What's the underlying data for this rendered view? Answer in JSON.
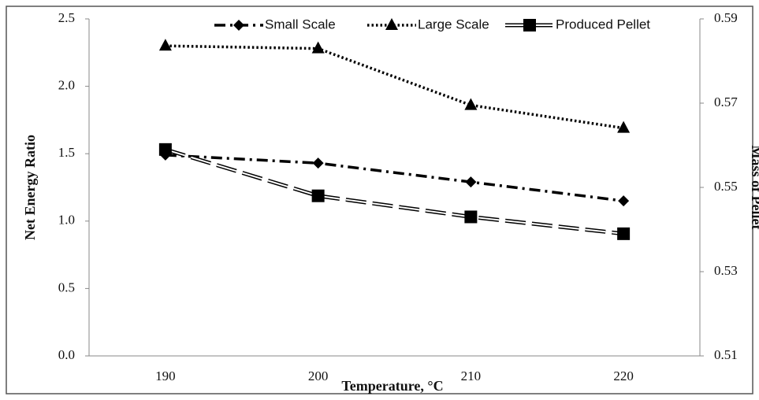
{
  "chart_data": {
    "type": "line",
    "xlabel": "Temperature, °C",
    "ylabel": "Net Energy Ratio",
    "y2label": "Mass of Pellet",
    "categories": [
      "190",
      "200",
      "210",
      "220"
    ],
    "series": [
      {
        "name": "Small Scale",
        "color": "#000000",
        "marker": "diamond",
        "line_style": "dashdot",
        "values": [
          1.49,
          1.43,
          1.29,
          1.15
        ]
      },
      {
        "name": "Large Scale",
        "color": "#000000",
        "marker": "triangle",
        "line_style": "dotted",
        "values": [
          2.3,
          2.28,
          1.86,
          1.69
        ]
      },
      {
        "name": "Produced Pellet",
        "color": "#000000",
        "marker": "square",
        "line_style": "double-dashed",
        "axis": "y2",
        "values": [
          0.559,
          0.548,
          0.543,
          0.539
        ]
      }
    ],
    "ylim": [
      0,
      2.5
    ],
    "yticks": [
      {
        "value": 0,
        "label": "0.0"
      },
      0.5,
      {
        "value": 1,
        "label": "1.0"
      },
      1.5,
      {
        "value": 2,
        "label": "2.0"
      },
      2.5
    ],
    "y2lim": [
      0.51,
      0.59
    ],
    "y2ticks": [
      0.51,
      0.53,
      0.55,
      0.57,
      0.59
    ],
    "grid": false,
    "legend": "top"
  }
}
